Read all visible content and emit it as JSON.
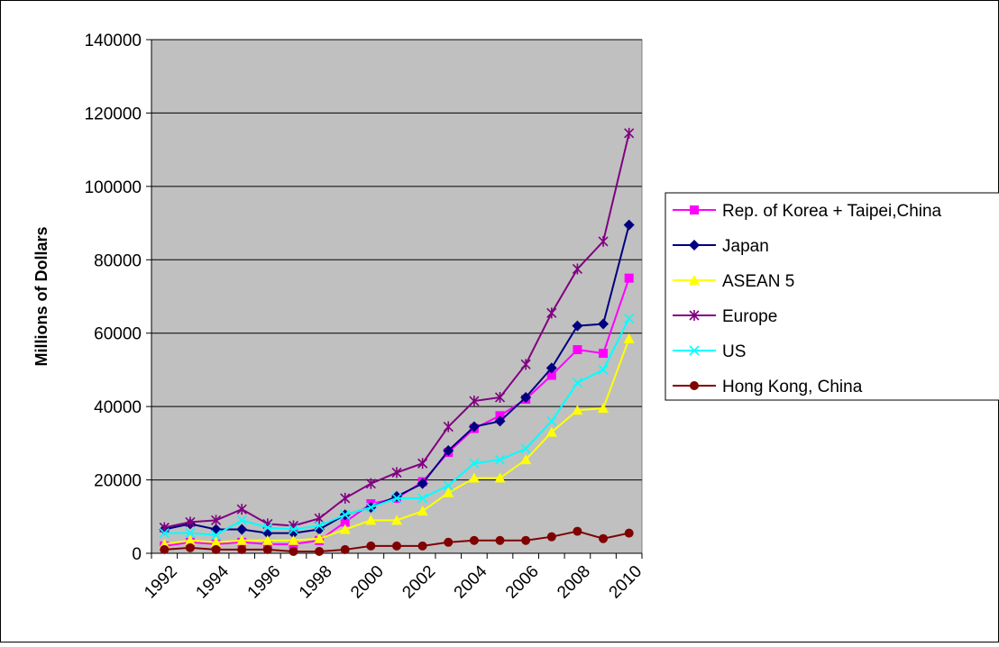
{
  "chart_data": {
    "type": "line",
    "ylabel": "Millions of Dollars",
    "xlabel": "",
    "title": "",
    "ylim": [
      0,
      140000
    ],
    "y_ticks": [
      0,
      20000,
      40000,
      60000,
      80000,
      100000,
      120000,
      140000
    ],
    "x_ticks": [
      "1992",
      "1994",
      "1996",
      "1998",
      "2000",
      "2002",
      "2004",
      "2006",
      "2008",
      "2010"
    ],
    "grid": "horizontal",
    "plot_background": "#c0c0c0",
    "legend_position": "right",
    "x": [
      1992,
      1993,
      1994,
      1995,
      1996,
      1997,
      1998,
      1999,
      2000,
      2001,
      2002,
      2003,
      2004,
      2005,
      2006,
      2007,
      2008,
      2009,
      2010
    ],
    "series": [
      {
        "name": "Rep. of Korea + Taipei,China",
        "color": "#ff00ff",
        "marker": "square",
        "values": [
          2000,
          3000,
          2500,
          3000,
          2500,
          2500,
          3500,
          8500,
          13500,
          15000,
          19500,
          27500,
          34000,
          37500,
          42000,
          48500,
          55500,
          54500,
          75000
        ]
      },
      {
        "name": "Japan",
        "color": "#000080",
        "marker": "diamond",
        "values": [
          6500,
          8000,
          6500,
          6500,
          5500,
          5500,
          6500,
          10500,
          12500,
          15500,
          19000,
          28000,
          34500,
          36000,
          42500,
          50500,
          62000,
          62500,
          89500
        ]
      },
      {
        "name": "ASEAN 5",
        "color": "#ffff00",
        "marker": "triangle",
        "values": [
          2500,
          3500,
          3000,
          3500,
          3500,
          3500,
          4000,
          6500,
          9000,
          9000,
          11500,
          16500,
          20500,
          20500,
          25500,
          33000,
          39000,
          39500,
          58500
        ]
      },
      {
        "name": "Europe",
        "color": "#800080",
        "marker": "star",
        "values": [
          7000,
          8500,
          9000,
          12000,
          8000,
          7500,
          9500,
          15000,
          19000,
          22000,
          24500,
          34500,
          41500,
          42500,
          51500,
          65500,
          77500,
          85000,
          114500
        ]
      },
      {
        "name": "US",
        "color": "#00ffff",
        "marker": "x",
        "values": [
          5500,
          5500,
          5000,
          9000,
          7000,
          6500,
          7500,
          10500,
          12500,
          15000,
          15000,
          18500,
          24500,
          25500,
          28500,
          36000,
          46500,
          50000,
          64000
        ]
      },
      {
        "name": "Hong Kong, China",
        "color": "#800000",
        "marker": "circle",
        "values": [
          1000,
          1500,
          1000,
          1000,
          1000,
          500,
          500,
          1000,
          2000,
          2000,
          2000,
          3000,
          3500,
          3500,
          3500,
          4500,
          6000,
          4000,
          5500
        ]
      }
    ]
  }
}
